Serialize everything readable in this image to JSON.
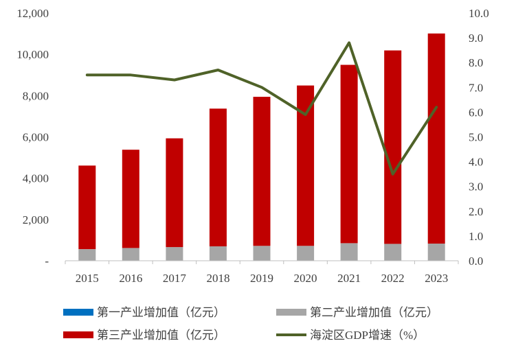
{
  "chart_data": {
    "type": "bar",
    "stacked": true,
    "categories": [
      "2015",
      "2016",
      "2017",
      "2018",
      "2019",
      "2020",
      "2021",
      "2022",
      "2023"
    ],
    "series": [
      {
        "name": "第一产业增加值（亿元）",
        "type": "bar",
        "axis": "left",
        "color": "#0070c0",
        "values": [
          0,
          0,
          0,
          0,
          0,
          0,
          0,
          0,
          0
        ]
      },
      {
        "name": "第二产业增加值（亿元）",
        "type": "bar",
        "axis": "left",
        "color": "#a6a6a6",
        "values": [
          560,
          620,
          660,
          700,
          720,
          720,
          850,
          820,
          830
        ]
      },
      {
        "name": "第三产业增加值（亿元）",
        "type": "bar",
        "axis": "left",
        "color": "#c00000",
        "values": [
          4050,
          4760,
          5270,
          6670,
          7220,
          7770,
          8640,
          9370,
          10180
        ]
      },
      {
        "name": "海淀区GDP增速（%）",
        "type": "line",
        "axis": "right",
        "color": "#4f6228",
        "values": [
          7.5,
          7.5,
          7.3,
          7.7,
          7.0,
          5.9,
          8.8,
          3.5,
          6.2
        ]
      }
    ],
    "y_left": {
      "ylim": [
        0,
        12000
      ],
      "ticks": [
        "-",
        "2,000",
        "4,000",
        "6,000",
        "8,000",
        "10,000",
        "12,000"
      ]
    },
    "y_right": {
      "ylim": [
        0,
        10
      ],
      "ticks": [
        "0.0",
        "1.0",
        "2.0",
        "3.0",
        "4.0",
        "5.0",
        "6.0",
        "7.0",
        "8.0",
        "9.0",
        "10.0"
      ]
    },
    "grid": false,
    "legend_placement": "bottom"
  }
}
